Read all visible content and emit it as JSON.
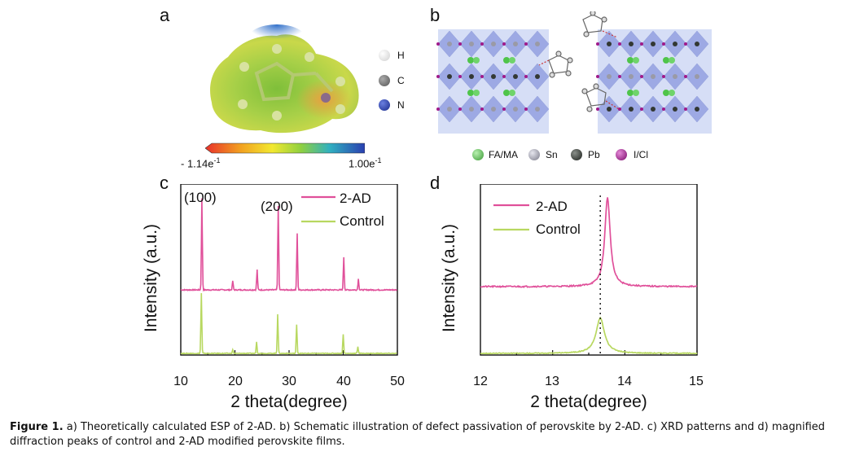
{
  "panels": {
    "a": {
      "letter": "a",
      "legend": [
        {
          "label": "H",
          "color": "#e8e8e8"
        },
        {
          "label": "C",
          "color": "#6a6a6a"
        },
        {
          "label": "N",
          "color": "#2b3fa8"
        }
      ],
      "scale_min": "- 1.14e",
      "scale_min_exp": "-1",
      "scale_max": "1.00e",
      "scale_max_exp": "-1"
    },
    "b": {
      "letter": "b",
      "legend": [
        {
          "label": "FA/MA",
          "color": "#4fc44a"
        },
        {
          "label": "Sn",
          "color": "#9a9aa6"
        },
        {
          "label": "Pb",
          "color": "#333833"
        },
        {
          "label": "I/Cl",
          "color": "#a01a8a"
        }
      ]
    },
    "c": {
      "letter": "c"
    },
    "d": {
      "letter": "d"
    }
  },
  "chart_data": [
    {
      "type": "line",
      "panel": "c",
      "xlabel": "2 theta(degree)",
      "ylabel": "Intensity (a.u.)",
      "xlim": [
        10,
        50
      ],
      "xticks": [
        "10",
        "20",
        "30",
        "40",
        "50"
      ],
      "peak_labels": [
        {
          "text": "(100)",
          "x": 14.0
        },
        {
          "text": "(200)",
          "x": 28.1
        }
      ],
      "series": [
        {
          "name": "2-AD",
          "color": "#e0509a",
          "peaks": [
            [
              13.9,
              1.0
            ],
            [
              19.6,
              0.1
            ],
            [
              24.1,
              0.22
            ],
            [
              28.0,
              0.92
            ],
            [
              31.5,
              0.62
            ],
            [
              40.1,
              0.36
            ],
            [
              42.8,
              0.12
            ]
          ]
        },
        {
          "name": "Control",
          "color": "#b8d860",
          "peaks": [
            [
              13.8,
              0.95
            ],
            [
              19.6,
              0.06
            ],
            [
              24.0,
              0.18
            ],
            [
              27.9,
              0.62
            ],
            [
              31.4,
              0.45
            ],
            [
              40.0,
              0.3
            ],
            [
              42.7,
              0.11
            ]
          ]
        }
      ]
    },
    {
      "type": "line",
      "panel": "d",
      "xlabel": "2 theta(degree)",
      "ylabel": "Intensity (a.u.)",
      "xlim": [
        12,
        15
      ],
      "xticks": [
        "12",
        "13",
        "14",
        "15"
      ],
      "reference_line_x": 13.66,
      "series": [
        {
          "name": "2-AD",
          "color": "#e0509a",
          "peak_x": 13.76,
          "height": 1.0
        },
        {
          "name": "Control",
          "color": "#b8d860",
          "peak_x": 13.66,
          "height": 0.62
        }
      ]
    }
  ],
  "caption": {
    "label": "Figure 1.",
    "text": " a) Theoretically calculated ESP of 2-AD. b) Schematic illustration of defect passivation of perovskite by 2-AD. c) XRD patterns and d) magnified diffraction peaks of control and 2-AD modified perovskite films."
  }
}
